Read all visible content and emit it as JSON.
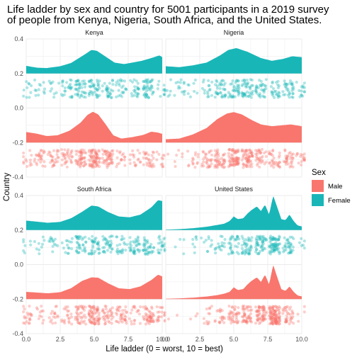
{
  "chart_data": {
    "type": "area",
    "title": "Life ladder by sex and country for 5001 participants in a 2019 survey of people from Kenya, Nigeria, South Africa, and the United States.",
    "title_lines": [
      "Life ladder by sex and country for 5001 participants in a 2019 survey",
      "of people from Kenya, Nigeria, South Africa, and the United States."
    ],
    "xlabel": "Life ladder (0 = worst, 10 = best)",
    "ylabel": "Country",
    "xlim": [
      0,
      10
    ],
    "ylim": [
      -0.4,
      0.4
    ],
    "x_ticks": [
      "0.0",
      "2.5",
      "5.0",
      "7.5",
      "10.0"
    ],
    "y_ticks": [
      "-0.4",
      "-0.2",
      "0.0",
      "0.2",
      "0.4"
    ],
    "grid": true,
    "legend": {
      "title": "Sex",
      "position": "right",
      "entries": [
        "Male",
        "Female"
      ]
    },
    "colors": {
      "Male": "#F8766D",
      "Female": "#19B6B8"
    },
    "panels": [
      {
        "name": "Kenya",
        "series": [
          {
            "name": "Female",
            "x": [
              0,
              0.8,
              1.5,
              2.5,
              3.3,
              4.2,
              4.8,
              5.2,
              5.8,
              6.5,
              7.2,
              7.8,
              8.5,
              9.2,
              9.8,
              10
            ],
            "density": [
              0.042,
              0.032,
              0.03,
              0.04,
              0.058,
              0.1,
              0.13,
              0.125,
              0.095,
              0.06,
              0.052,
              0.06,
              0.07,
              0.085,
              0.1,
              0.09
            ]
          },
          {
            "name": "Male",
            "x": [
              0,
              0.7,
              1.5,
              2.3,
              3.2,
              4.0,
              4.5,
              4.9,
              5.3,
              5.8,
              6.4,
              7.0,
              7.8,
              8.6,
              9.2,
              9.7,
              10
            ],
            "density": [
              0.058,
              0.05,
              0.036,
              0.04,
              0.066,
              0.11,
              0.152,
              0.17,
              0.155,
              0.105,
              0.04,
              0.022,
              0.03,
              0.042,
              0.06,
              0.055,
              0.048
            ]
          }
        ]
      },
      {
        "name": "Nigeria",
        "series": [
          {
            "name": "Female",
            "x": [
              0,
              1,
              2,
              3,
              4,
              4.6,
              5.2,
              6,
              7,
              7.8,
              8.6,
              9.3,
              10
            ],
            "density": [
              0.04,
              0.035,
              0.045,
              0.06,
              0.1,
              0.13,
              0.14,
              0.12,
              0.085,
              0.07,
              0.08,
              0.095,
              0.09
            ]
          },
          {
            "name": "Male",
            "x": [
              0,
              1,
              2,
              3,
              3.8,
              4.5,
              5.0,
              5.6,
              6.3,
              7,
              7.8,
              8.5,
              9.2,
              10
            ],
            "density": [
              0.018,
              0.022,
              0.045,
              0.08,
              0.13,
              0.16,
              0.168,
              0.155,
              0.125,
              0.1,
              0.09,
              0.095,
              0.1,
              0.09
            ]
          }
        ]
      },
      {
        "name": "South Africa",
        "series": [
          {
            "name": "Female",
            "x": [
              0,
              0.8,
              1.6,
              2.5,
              3.3,
              4.1,
              4.8,
              5.3,
              6,
              6.8,
              7.6,
              8.4,
              9.2,
              9.7,
              10
            ],
            "density": [
              0.052,
              0.046,
              0.04,
              0.045,
              0.065,
              0.1,
              0.135,
              0.13,
              0.1,
              0.075,
              0.07,
              0.085,
              0.125,
              0.165,
              0.16
            ]
          },
          {
            "name": "Male",
            "x": [
              0,
              0.8,
              1.6,
              2.5,
              3.3,
              4.1,
              4.8,
              5.3,
              6,
              6.8,
              7.6,
              8.4,
              9.2,
              9.7,
              10
            ],
            "density": [
              0.04,
              0.036,
              0.032,
              0.038,
              0.06,
              0.1,
              0.12,
              0.118,
              0.088,
              0.06,
              0.055,
              0.07,
              0.105,
              0.135,
              0.125
            ]
          }
        ]
      },
      {
        "name": "United States",
        "series": [
          {
            "name": "Female",
            "x": [
              0,
              1,
              2,
              3,
              3.8,
              4.3,
              4.7,
              5.0,
              5.3,
              5.7,
              6.0,
              6.3,
              6.7,
              7.0,
              7.3,
              7.6,
              7.9,
              8.2,
              8.5,
              8.8,
              9.1,
              9.4,
              9.7,
              10
            ],
            "density": [
              0.002,
              0.005,
              0.01,
              0.018,
              0.028,
              0.035,
              0.05,
              0.075,
              0.06,
              0.065,
              0.09,
              0.11,
              0.13,
              0.105,
              0.14,
              0.085,
              0.19,
              0.125,
              0.06,
              0.055,
              0.085,
              0.05,
              0.025,
              0.02
            ]
          },
          {
            "name": "Male",
            "x": [
              0,
              1,
              2,
              3,
              3.8,
              4.3,
              4.7,
              5.0,
              5.3,
              5.7,
              6.0,
              6.3,
              6.7,
              7.0,
              7.3,
              7.6,
              7.9,
              8.2,
              8.5,
              8.8,
              9.1,
              9.4,
              9.7,
              10
            ],
            "density": [
              0.002,
              0.004,
              0.008,
              0.014,
              0.022,
              0.03,
              0.04,
              0.065,
              0.05,
              0.055,
              0.08,
              0.1,
              0.12,
              0.095,
              0.135,
              0.08,
              0.19,
              0.12,
              0.055,
              0.045,
              0.07,
              0.04,
              0.02,
              0.015
            ]
          }
        ]
      }
    ]
  }
}
